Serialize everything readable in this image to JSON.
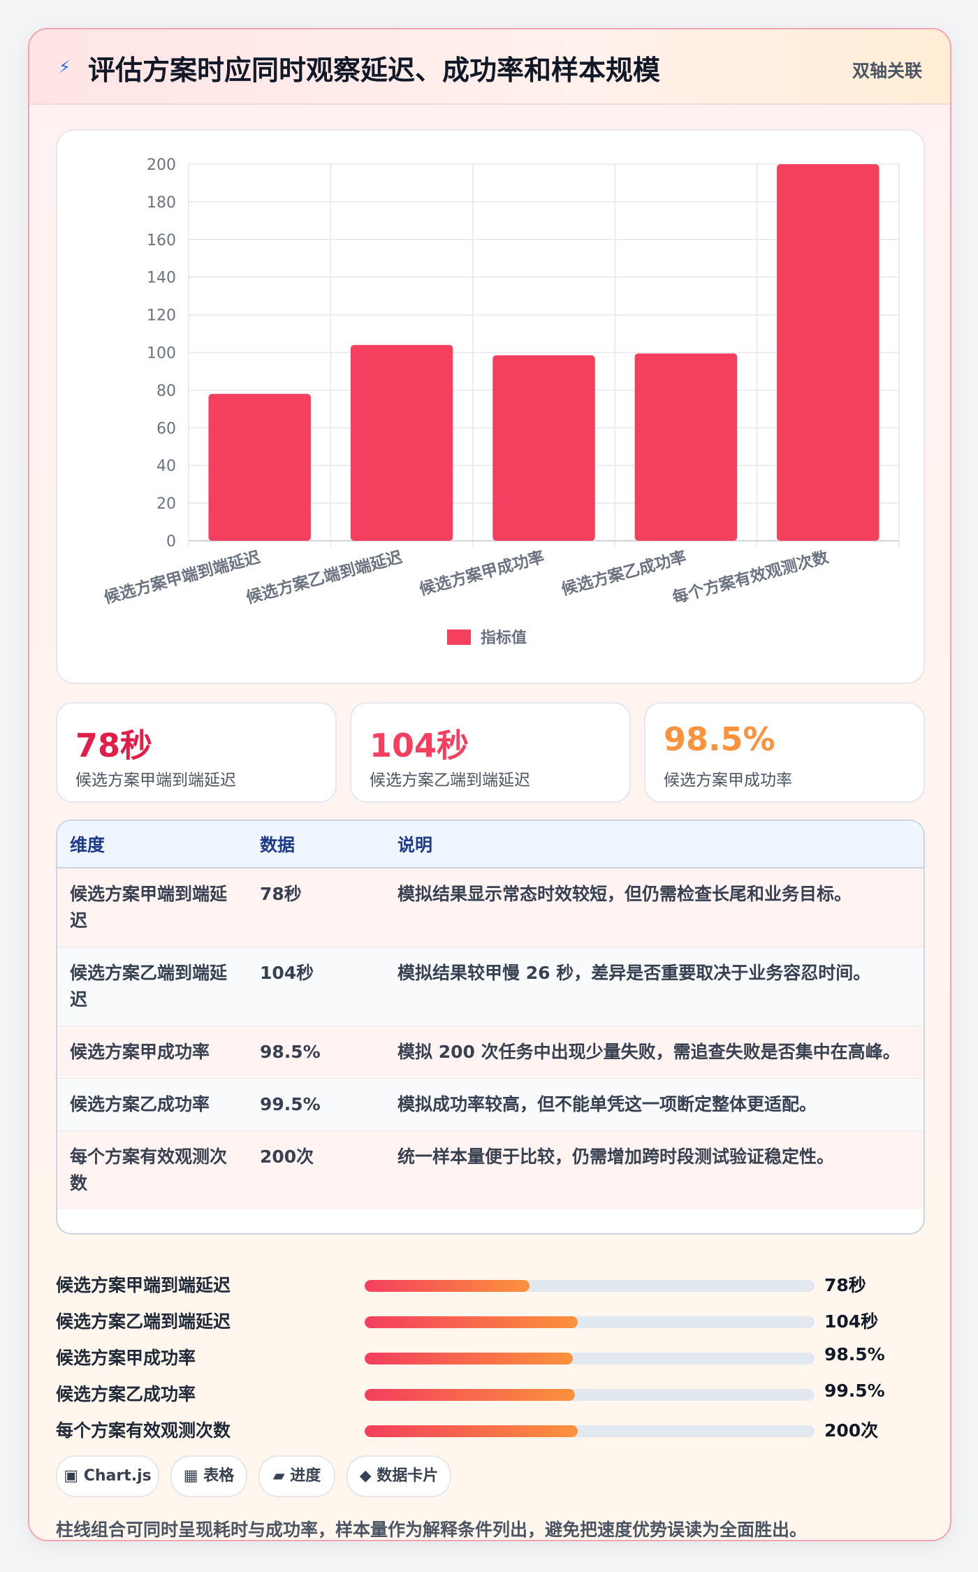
{
  "header": {
    "icon": "lightning-icon",
    "title": "评估方案时应同时观察延迟、成功率和样本规模",
    "badge": "双轴关联"
  },
  "chart_data": {
    "type": "bar",
    "categories": [
      "候选方案甲端到端延迟",
      "候选方案乙端到端延迟",
      "候选方案甲成功率",
      "候选方案乙成功率",
      "每个方案有效观测次数"
    ],
    "series": [
      {
        "name": "指标值",
        "values": [
          78,
          104,
          98.5,
          99.5,
          200
        ],
        "color": "#f43f5e"
      }
    ],
    "ylim": [
      0,
      200
    ],
    "yticks": [
      0,
      20,
      40,
      60,
      80,
      100,
      120,
      140,
      160,
      180,
      200
    ],
    "grid": true,
    "legend": "bottom"
  },
  "kpis": [
    {
      "value": "78秒",
      "label": "候选方案甲端到端延迟",
      "color": "#e11d48"
    },
    {
      "value": "104秒",
      "label": "候选方案乙端到端延迟",
      "color": "#f43f5e"
    },
    {
      "value": "98.5%",
      "label": "候选方案甲成功率",
      "color": "#fb923c"
    }
  ],
  "table": {
    "headers": [
      "维度",
      "数据",
      "说明"
    ],
    "rows": [
      [
        "候选方案甲端到端延迟",
        "78秒",
        "模拟结果显示常态时效较短，但仍需检查长尾和业务目标。"
      ],
      [
        "候选方案乙端到端延迟",
        "104秒",
        "模拟结果较甲慢 26 秒，差异是否重要取决于业务容忍时间。"
      ],
      [
        "候选方案甲成功率",
        "98.5%",
        "模拟 200 次任务中出现少量失败，需追查失败是否集中在高峰。"
      ],
      [
        "候选方案乙成功率",
        "99.5%",
        "模拟成功率较高，但不能单凭这一项断定整体更适配。"
      ],
      [
        "每个方案有效观测次数",
        "200次",
        "统一样本量便于比较，仍需增加跨时段测试验证稳定性。"
      ]
    ]
  },
  "progress": [
    {
      "label": "候选方案甲端到端延迟",
      "value": "78秒",
      "fraction": 0.366
    },
    {
      "label": "候选方案乙端到端延迟",
      "value": "104秒",
      "fraction": 0.473
    },
    {
      "label": "候选方案甲成功率",
      "value": "98.5%",
      "fraction": 0.463
    },
    {
      "label": "候选方案乙成功率",
      "value": "99.5%",
      "fraction": 0.467
    },
    {
      "label": "每个方案有效观测次数",
      "value": "200次",
      "fraction": 0.473
    }
  ],
  "chips": [
    {
      "icon": "chart-icon",
      "glyph": "▣",
      "label": "Chart.js"
    },
    {
      "icon": "table-icon",
      "glyph": "▦",
      "label": "表格"
    },
    {
      "icon": "progress-icon",
      "glyph": "▰",
      "label": "进度"
    },
    {
      "icon": "diamond-icon",
      "glyph": "◆",
      "label": "数据卡片"
    }
  ],
  "note": "柱线组合可同时呈现耗时与成功率，样本量作为解释条件列出，避免把速度优势误读为全面胜出。"
}
